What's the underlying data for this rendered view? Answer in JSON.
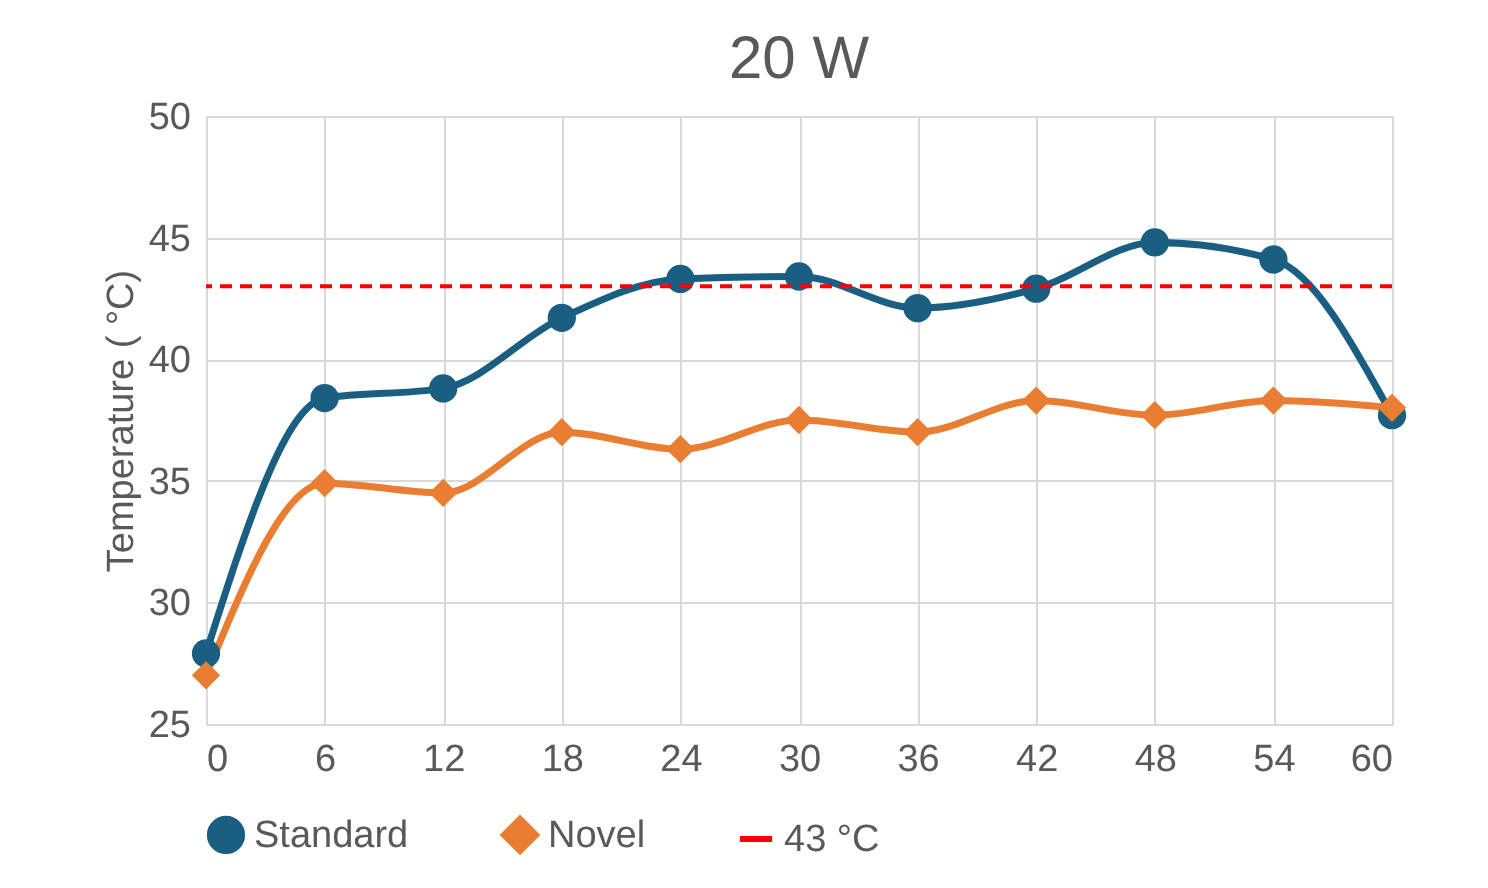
{
  "chart_data": {
    "type": "line",
    "title": "20 W",
    "ylabel": "Temperature ( °C)",
    "x": [
      0,
      6,
      12,
      18,
      24,
      30,
      36,
      42,
      48,
      54,
      60
    ],
    "series": [
      {
        "name": "Standard",
        "color": "#1a5f82",
        "marker": "circle",
        "values": [
          27.9,
          38.4,
          38.8,
          41.7,
          43.3,
          43.4,
          42.1,
          42.9,
          44.8,
          44.1,
          37.7
        ]
      },
      {
        "name": "Novel",
        "color": "#e97d32",
        "marker": "diamond",
        "values": [
          27.0,
          34.9,
          34.5,
          37.0,
          36.3,
          37.5,
          37.0,
          38.3,
          37.7,
          38.3,
          38.0
        ]
      }
    ],
    "ref_lines": [
      {
        "axis": "y",
        "value": 43,
        "label": "43 °C",
        "color": "#ff0000",
        "line_style": "dashed"
      }
    ],
    "xlim": [
      0,
      60
    ],
    "xticks": [
      0,
      6,
      12,
      18,
      24,
      30,
      36,
      42,
      48,
      54,
      60
    ],
    "ylim": [
      25,
      50
    ],
    "yticks": [
      25,
      30,
      35,
      40,
      45,
      50
    ],
    "grid": true,
    "legend": "bottom",
    "line_style": "solid"
  }
}
